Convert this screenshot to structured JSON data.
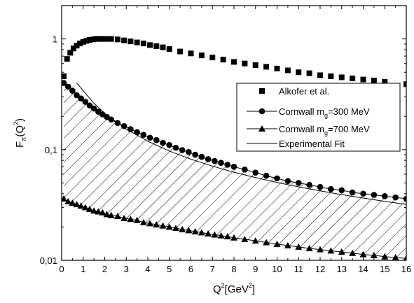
{
  "chart_data": {
    "type": "scatter",
    "xlabel": {
      "base": "Q",
      "sup": "2",
      "bracket_open": "[GeV",
      "bracket_sup": "2",
      "bracket_close": "]"
    },
    "ylabel": {
      "base": "F",
      "sub": "π",
      "arg_open": "(Q",
      "arg_sup": "2",
      "arg_close": ")"
    },
    "xlim": [
      0,
      16
    ],
    "ylim": [
      0.01,
      2
    ],
    "yscale": "log",
    "x_ticks": [
      "0",
      "1",
      "2",
      "3",
      "4",
      "5",
      "6",
      "7",
      "8",
      "9",
      "10",
      "11",
      "12",
      "13",
      "14",
      "15",
      "16"
    ],
    "y_ticks": [
      {
        "value": 1,
        "label": "1"
      },
      {
        "value": 0.1,
        "label": "0,1"
      },
      {
        "value": 0.01,
        "label": "0,01"
      }
    ],
    "legend_position": "center-right",
    "shaded_region": {
      "between": [
        "Cornwall mg=300 MeV",
        "Cornwall mg=700 MeV"
      ],
      "pattern": "diagonal-hatch"
    },
    "series": [
      {
        "name": "Alkofer et al.",
        "marker": "square",
        "x": [
          0.1,
          0.25,
          0.4,
          0.55,
          0.7,
          0.85,
          1.0,
          1.15,
          1.3,
          1.45,
          1.6,
          1.75,
          1.9,
          2.05,
          2.3,
          2.6,
          2.9,
          3.2,
          3.5,
          3.8,
          4.1,
          4.4,
          4.7,
          5.0,
          5.5,
          6.0,
          6.5,
          7.0,
          7.5,
          8.0,
          8.5,
          9.0,
          9.5,
          10.0,
          10.5,
          11.0,
          11.5,
          12.0,
          12.5,
          13.0,
          13.5,
          14.0,
          14.5,
          15.0,
          16.0
        ],
        "y": [
          0.46,
          0.66,
          0.75,
          0.82,
          0.87,
          0.91,
          0.94,
          0.96,
          0.98,
          0.99,
          1.0,
          1.0,
          1.0,
          1.0,
          1.0,
          0.99,
          0.97,
          0.95,
          0.93,
          0.91,
          0.88,
          0.86,
          0.84,
          0.81,
          0.77,
          0.74,
          0.71,
          0.68,
          0.65,
          0.62,
          0.6,
          0.58,
          0.56,
          0.54,
          0.52,
          0.5,
          0.49,
          0.47,
          0.46,
          0.45,
          0.44,
          0.43,
          0.42,
          0.41,
          0.39
        ]
      },
      {
        "name": "Cornwall",
        "name_sub": "g",
        "name_prefix": "m",
        "name_value": "=300 MeV",
        "marker": "circle",
        "x": [
          0.1,
          0.3,
          0.5,
          0.7,
          0.9,
          1.1,
          1.3,
          1.5,
          1.7,
          1.9,
          2.1,
          2.3,
          2.6,
          2.9,
          3.2,
          3.5,
          3.8,
          4.1,
          4.4,
          4.7,
          5.0,
          5.3,
          5.6,
          5.9,
          6.2,
          6.5,
          6.8,
          7.1,
          7.4,
          7.7,
          8.0,
          8.5,
          9.0,
          9.5,
          10.0,
          10.5,
          11.0,
          11.5,
          12.0,
          12.5,
          13.0,
          13.5,
          14.0,
          14.5,
          15.0,
          15.5,
          16.0
        ],
        "y": [
          0.4,
          0.37,
          0.34,
          0.31,
          0.29,
          0.27,
          0.25,
          0.235,
          0.22,
          0.208,
          0.197,
          0.187,
          0.174,
          0.163,
          0.153,
          0.144,
          0.136,
          0.128,
          0.122,
          0.115,
          0.11,
          0.104,
          0.099,
          0.095,
          0.09,
          0.086,
          0.082,
          0.079,
          0.076,
          0.073,
          0.07,
          0.066,
          0.062,
          0.058,
          0.055,
          0.052,
          0.05,
          0.048,
          0.046,
          0.044,
          0.043,
          0.041,
          0.04,
          0.039,
          0.038,
          0.037,
          0.036
        ]
      },
      {
        "name": "Cornwall",
        "name_sub": "g",
        "name_prefix": "m",
        "name_value": "=700 MeV",
        "marker": "triangle",
        "x": [
          0.1,
          0.3,
          0.5,
          0.7,
          0.9,
          1.1,
          1.3,
          1.5,
          1.7,
          1.9,
          2.1,
          2.3,
          2.6,
          2.9,
          3.2,
          3.5,
          3.8,
          4.1,
          4.4,
          4.7,
          5.0,
          5.3,
          5.6,
          5.9,
          6.2,
          6.5,
          6.8,
          7.1,
          7.4,
          7.7,
          8.0,
          8.5,
          9.0,
          9.5,
          10.0,
          10.5,
          11.0,
          11.5,
          12.0,
          12.5,
          13.0,
          13.5,
          14.0,
          14.5,
          15.0,
          15.5,
          16.0
        ],
        "y": [
          0.036,
          0.034,
          0.033,
          0.032,
          0.031,
          0.03,
          0.029,
          0.028,
          0.0275,
          0.027,
          0.026,
          0.0255,
          0.025,
          0.024,
          0.0235,
          0.023,
          0.022,
          0.0215,
          0.021,
          0.0205,
          0.02,
          0.0195,
          0.019,
          0.0186,
          0.0182,
          0.0178,
          0.0174,
          0.017,
          0.0167,
          0.0164,
          0.016,
          0.0155,
          0.015,
          0.0145,
          0.014,
          0.0136,
          0.0132,
          0.0128,
          0.0125,
          0.0122,
          0.0119,
          0.0116,
          0.0113,
          0.0111,
          0.0108,
          0.0106,
          0.0104
        ]
      },
      {
        "name": "Experimental Fit",
        "marker": "line",
        "x": [
          0.7,
          1.0,
          1.5,
          2.0,
          3.0,
          4.0,
          5.0,
          6.0,
          7.0,
          8.0,
          9.0,
          10.0,
          11.0,
          12.0,
          13.0,
          14.0,
          15.0,
          16.0
        ],
        "y": [
          0.4,
          0.34,
          0.262,
          0.213,
          0.153,
          0.119,
          0.0971,
          0.0819,
          0.0709,
          0.0625,
          0.0559,
          0.0505,
          0.0461,
          0.0424,
          0.0392,
          0.0365,
          0.0341,
          0.032
        ]
      }
    ]
  }
}
